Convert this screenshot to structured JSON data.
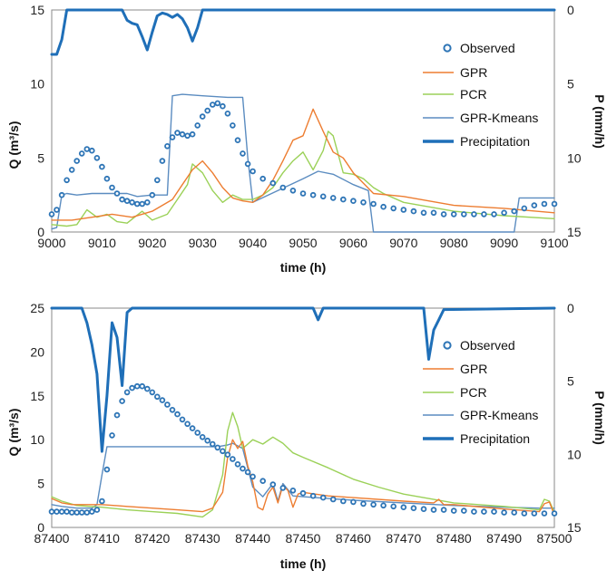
{
  "colors": {
    "observed": "#2e75b6",
    "gpr": "#ed7d31",
    "pcr": "#9bd158",
    "gpr_kmeans": "#5b8cc0",
    "precipitation": "#1f6fb8"
  },
  "chart_data": [
    {
      "type": "line",
      "xlabel": "time (h)",
      "ylabel": "Q (m³/s)",
      "y2label": "P (mm/h)",
      "xlim": [
        9000,
        9100
      ],
      "ylim": [
        0,
        15
      ],
      "y2lim": [
        15,
        0
      ],
      "xticks": [
        "9000",
        "9010",
        "9020",
        "9030",
        "9040",
        "9050",
        "9060",
        "9070",
        "9080",
        "9090",
        "9100"
      ],
      "yticks": [
        "0",
        "5",
        "10",
        "15"
      ],
      "y2ticks": [
        "15",
        "10",
        "5",
        "0"
      ],
      "legend": [
        "Observed",
        "GPR",
        "PCR",
        "GPR-Kmeans",
        "Precipitation"
      ],
      "legend_position": "right",
      "series": [
        {
          "name": "Observed",
          "style": "markers",
          "x": [
            9000,
            9001,
            9002,
            9003,
            9004,
            9005,
            9006,
            9007,
            9008,
            9009,
            9010,
            9011,
            9012,
            9013,
            9014,
            9015,
            9016,
            9017,
            9018,
            9019,
            9020,
            9021,
            9022,
            9023,
            9024,
            9025,
            9026,
            9027,
            9028,
            9029,
            9030,
            9031,
            9032,
            9033,
            9034,
            9035,
            9036,
            9037,
            9038,
            9039,
            9040,
            9042,
            9044,
            9046,
            9048,
            9050,
            9052,
            9054,
            9056,
            9058,
            9060,
            9062,
            9064,
            9066,
            9068,
            9070,
            9072,
            9074,
            9076,
            9078,
            9080,
            9082,
            9084,
            9086,
            9088,
            9090,
            9092,
            9094,
            9096,
            9098,
            9100
          ],
          "y": [
            1.2,
            1.5,
            2.5,
            3.5,
            4.2,
            4.8,
            5.3,
            5.6,
            5.5,
            5.0,
            4.4,
            3.6,
            3.0,
            2.6,
            2.2,
            2.1,
            2.0,
            1.9,
            1.9,
            2.0,
            2.5,
            3.5,
            4.8,
            5.8,
            6.4,
            6.7,
            6.6,
            6.5,
            6.6,
            7.2,
            7.8,
            8.2,
            8.6,
            8.7,
            8.5,
            8.0,
            7.2,
            6.2,
            5.3,
            4.6,
            4.1,
            3.6,
            3.3,
            3.0,
            2.8,
            2.6,
            2.5,
            2.4,
            2.3,
            2.2,
            2.1,
            2.0,
            1.9,
            1.7,
            1.6,
            1.5,
            1.4,
            1.3,
            1.3,
            1.2,
            1.2,
            1.2,
            1.2,
            1.2,
            1.2,
            1.3,
            1.4,
            1.6,
            1.8,
            1.9,
            1.9
          ]
        },
        {
          "name": "GPR",
          "style": "line",
          "x": [
            9000,
            9004,
            9008,
            9012,
            9016,
            9020,
            9024,
            9026,
            9028,
            9030,
            9032,
            9034,
            9036,
            9038,
            9040,
            9042,
            9044,
            9046,
            9048,
            9050,
            9052,
            9054,
            9056,
            9058,
            9060,
            9064,
            9070,
            9080,
            9090,
            9100
          ],
          "y": [
            0.8,
            0.8,
            1.0,
            1.2,
            1.0,
            1.4,
            2.2,
            3.2,
            4.2,
            4.8,
            4.0,
            3.0,
            2.3,
            2.1,
            2.0,
            2.5,
            3.5,
            4.8,
            6.2,
            6.5,
            8.3,
            6.8,
            5.4,
            5.0,
            4.0,
            2.6,
            2.4,
            1.8,
            1.6,
            1.3
          ]
        },
        {
          "name": "PCR",
          "style": "line",
          "x": [
            9000,
            9003,
            9005,
            9007,
            9009,
            9011,
            9013,
            9015,
            9018,
            9020,
            9023,
            9025,
            9027,
            9028,
            9030,
            9032,
            9034,
            9036,
            9038,
            9040,
            9042,
            9044,
            9046,
            9048,
            9050,
            9052,
            9054,
            9055,
            9056,
            9058,
            9060,
            9062,
            9064,
            9066,
            9070,
            9080,
            9090,
            9100
          ],
          "y": [
            0.5,
            0.4,
            0.5,
            1.5,
            1.0,
            1.2,
            0.7,
            0.6,
            1.4,
            0.8,
            1.2,
            2.2,
            3.2,
            4.6,
            4.0,
            2.8,
            2.0,
            2.5,
            2.2,
            2.2,
            2.5,
            3.0,
            4.0,
            4.8,
            5.4,
            4.2,
            5.5,
            6.8,
            6.5,
            4.0,
            3.9,
            3.6,
            3.0,
            2.6,
            2.0,
            1.4,
            1.1,
            0.9
          ]
        },
        {
          "name": "GPR-Kmeans",
          "style": "line",
          "x": [
            9000,
            9001,
            9002,
            9003,
            9005,
            9008,
            9012,
            9015,
            9017,
            9020,
            9023,
            9024,
            9026,
            9030,
            9035,
            9038,
            9039,
            9040,
            9045,
            9050,
            9053,
            9056,
            9060,
            9063,
            9064,
            9066,
            9068,
            9070,
            9075,
            9080,
            9085,
            9090,
            9092,
            9093,
            9095,
            9100
          ],
          "y": [
            0.2,
            0.3,
            2.5,
            2.6,
            2.5,
            2.6,
            2.6,
            2.6,
            2.4,
            2.5,
            2.5,
            9.2,
            9.3,
            9.2,
            9.1,
            9.1,
            5.0,
            2.0,
            2.8,
            3.6,
            4.1,
            3.9,
            3.2,
            2.8,
            0.0,
            0.0,
            0.0,
            0.0,
            0.0,
            0.0,
            0.0,
            0.0,
            0.0,
            2.3,
            2.3,
            2.3
          ]
        },
        {
          "name": "Precipitation",
          "style": "thick-line",
          "axis": "secondary",
          "x": [
            9000,
            9001,
            9002,
            9003,
            9004,
            9005,
            9013,
            9014,
            9015,
            9016,
            9017,
            9018,
            9019,
            9020,
            9021,
            9022,
            9023,
            9024,
            9025,
            9026,
            9027,
            9028,
            9029,
            9030,
            9100
          ],
          "y": [
            3.0,
            3.0,
            2.0,
            0.0,
            0.0,
            0.0,
            0.0,
            0.0,
            0.7,
            0.9,
            1.0,
            1.8,
            2.7,
            1.5,
            0.4,
            0.2,
            0.3,
            0.5,
            0.3,
            0.6,
            1.2,
            2.1,
            1.2,
            0.0,
            0.0
          ]
        }
      ]
    },
    {
      "type": "line",
      "xlabel": "time (h)",
      "ylabel": "Q (m³/s)",
      "y2label": "P (mm/h)",
      "xlim": [
        87400,
        87500
      ],
      "ylim": [
        0,
        25
      ],
      "y2lim": [
        15,
        0
      ],
      "xticks": [
        "87400",
        "87410",
        "87420",
        "87430",
        "87440",
        "87450",
        "87460",
        "87470",
        "87480",
        "87490",
        "87500"
      ],
      "yticks": [
        "0",
        "5",
        "10",
        "15",
        "20",
        "25"
      ],
      "y2ticks": [
        "15",
        "10",
        "5",
        "0"
      ],
      "legend": [
        "Observed",
        "GPR",
        "PCR",
        "GPR-Kmeans",
        "Precipitation"
      ],
      "legend_position": "right",
      "series": [
        {
          "name": "Observed",
          "style": "markers",
          "x": [
            87400,
            87401,
            87402,
            87403,
            87404,
            87405,
            87406,
            87407,
            87408,
            87409,
            87410,
            87411,
            87412,
            87413,
            87414,
            87415,
            87416,
            87417,
            87418,
            87419,
            87420,
            87421,
            87422,
            87423,
            87424,
            87425,
            87426,
            87427,
            87428,
            87429,
            87430,
            87431,
            87432,
            87433,
            87434,
            87435,
            87436,
            87437,
            87438,
            87439,
            87440,
            87442,
            87444,
            87446,
            87448,
            87450,
            87452,
            87454,
            87456,
            87458,
            87460,
            87462,
            87464,
            87466,
            87468,
            87470,
            87472,
            87474,
            87476,
            87478,
            87480,
            87482,
            87484,
            87486,
            87488,
            87490,
            87492,
            87494,
            87496,
            87498,
            87500
          ],
          "y": [
            1.8,
            1.8,
            1.8,
            1.8,
            1.7,
            1.7,
            1.7,
            1.7,
            1.8,
            2.0,
            3.0,
            6.6,
            10.5,
            12.8,
            14.4,
            15.4,
            15.9,
            16.1,
            16.1,
            15.8,
            15.4,
            14.9,
            14.5,
            14.0,
            13.4,
            12.9,
            12.3,
            11.8,
            11.3,
            10.8,
            10.3,
            9.9,
            9.5,
            9.1,
            8.7,
            8.3,
            7.8,
            7.2,
            6.7,
            6.3,
            5.8,
            5.3,
            4.9,
            4.5,
            4.2,
            3.9,
            3.6,
            3.4,
            3.2,
            3.0,
            2.9,
            2.7,
            2.6,
            2.5,
            2.4,
            2.3,
            2.2,
            2.1,
            2.0,
            2.0,
            1.9,
            1.9,
            1.8,
            1.8,
            1.8,
            1.7,
            1.7,
            1.6,
            1.6,
            1.6,
            1.6
          ]
        },
        {
          "name": "GPR",
          "style": "line",
          "x": [
            87400,
            87402,
            87404,
            87406,
            87410,
            87415,
            87420,
            87425,
            87430,
            87432,
            87434,
            87435,
            87436,
            87437,
            87438,
            87439,
            87440,
            87441,
            87442,
            87443,
            87444,
            87445,
            87446,
            87447,
            87448,
            87449,
            87450,
            87455,
            87460,
            87470,
            87476,
            87477,
            87478,
            87480,
            87490,
            87497,
            87498,
            87499,
            87500
          ],
          "y": [
            3.3,
            2.8,
            2.6,
            2.6,
            2.6,
            2.4,
            2.2,
            2.0,
            1.8,
            2.2,
            4.0,
            8.0,
            10.0,
            9.0,
            9.8,
            7.0,
            5.2,
            2.3,
            2.0,
            3.8,
            4.6,
            2.8,
            4.8,
            4.2,
            2.3,
            3.8,
            4.0,
            3.6,
            3.4,
            3.0,
            2.8,
            3.2,
            2.6,
            2.6,
            2.1,
            1.8,
            2.7,
            2.9,
            1.4
          ]
        },
        {
          "name": "PCR",
          "style": "line",
          "x": [
            87400,
            87402,
            87405,
            87410,
            87415,
            87420,
            87425,
            87430,
            87432,
            87434,
            87435,
            87436,
            87437,
            87438,
            87440,
            87442,
            87444,
            87446,
            87448,
            87450,
            87455,
            87460,
            87465,
            87470,
            87480,
            87490,
            87497,
            87498,
            87499,
            87500
          ],
          "y": [
            3.5,
            3.0,
            2.5,
            2.3,
            2.0,
            1.8,
            1.6,
            1.2,
            2.0,
            6.0,
            11.0,
            13.1,
            11.5,
            9.0,
            10.0,
            9.5,
            10.3,
            9.6,
            8.5,
            8.0,
            6.8,
            5.5,
            4.6,
            3.8,
            2.8,
            2.4,
            2.0,
            3.2,
            3.0,
            1.7
          ]
        },
        {
          "name": "GPR-Kmeans",
          "style": "line",
          "x": [
            87400,
            87402,
            87405,
            87408,
            87409,
            87410,
            87411,
            87413,
            87420,
            87425,
            87430,
            87433,
            87435,
            87436,
            87437,
            87438,
            87440,
            87442,
            87444,
            87445,
            87446,
            87448,
            87450,
            87455,
            87460,
            87470,
            87480,
            87490,
            87497,
            87500
          ],
          "y": [
            2.6,
            2.4,
            2.2,
            2.2,
            2.6,
            6.0,
            9.2,
            9.2,
            9.2,
            9.2,
            9.2,
            9.2,
            9.4,
            9.6,
            9.3,
            9.0,
            4.6,
            3.5,
            5.0,
            3.0,
            5.0,
            3.6,
            3.5,
            3.3,
            3.1,
            2.8,
            2.5,
            2.3,
            2.2,
            2.2
          ]
        },
        {
          "name": "Precipitation",
          "style": "thick-line",
          "axis": "secondary",
          "x": [
            87400,
            87406,
            87407,
            87408,
            87409,
            87410,
            87411,
            87412,
            87413,
            87414,
            87415,
            87416,
            87418,
            87452,
            87453,
            87454,
            87474,
            87475,
            87476,
            87477,
            87478,
            87500
          ],
          "y": [
            0.0,
            0.0,
            1.0,
            2.5,
            4.5,
            9.8,
            6.0,
            1.0,
            2.0,
            5.3,
            0.3,
            0.0,
            0.0,
            0.0,
            0.8,
            0.0,
            0.0,
            3.5,
            1.5,
            0.8,
            0.1,
            0.0
          ]
        }
      ]
    }
  ]
}
